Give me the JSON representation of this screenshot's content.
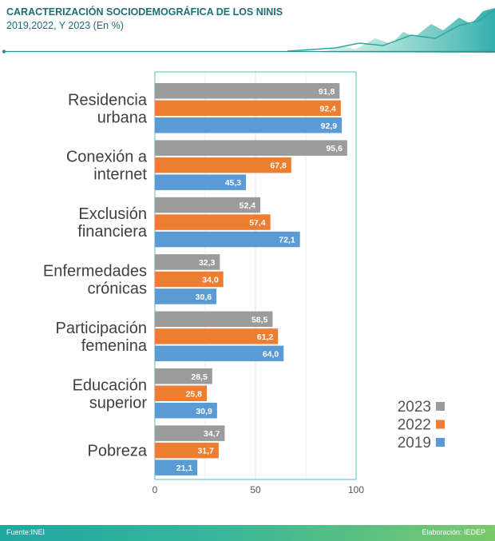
{
  "header": {
    "title_line1": "CARACTERIZACIÓN SOCIODEMOGRÁFICA DE LOS NINIS",
    "title_line2": "2019,2022, Y 2023 (En %)"
  },
  "footer": {
    "source": "Fuente:INEI",
    "credit": "Elaboración: IEDEP"
  },
  "colors": {
    "accent": "#1f6f73",
    "2023": "#9b9b9b",
    "2022": "#ed7d31",
    "2019": "#5b9bd5",
    "axis_frame": "#8ed3d6"
  },
  "chart_data": {
    "type": "bar",
    "orientation": "horizontal",
    "categories": [
      [
        "Residencia",
        "urbana"
      ],
      [
        "Conexión a",
        "internet"
      ],
      [
        "Exclusión",
        "financiera"
      ],
      [
        "Enfermedades",
        "crónicas"
      ],
      [
        "Participación",
        "femenina"
      ],
      [
        "Educación",
        "superior"
      ],
      [
        "Pobreza"
      ]
    ],
    "series": [
      {
        "name": "2023",
        "values": [
          91.8,
          95.6,
          52.4,
          32.3,
          58.5,
          28.5,
          34.7
        ],
        "labels": [
          "91,8",
          "95,6",
          "52,4",
          "32,3",
          "58,5",
          "28,5",
          "34,7"
        ]
      },
      {
        "name": "2022",
        "values": [
          92.4,
          67.8,
          57.4,
          34.0,
          61.2,
          25.8,
          31.7
        ],
        "labels": [
          "92,4",
          "67,8",
          "57,4",
          "34,0",
          "61,2",
          "25,8",
          "31,7"
        ]
      },
      {
        "name": "2019",
        "values": [
          92.9,
          45.3,
          72.1,
          30.6,
          64.0,
          30.9,
          21.1
        ],
        "labels": [
          "92,9",
          "45,3",
          "72,1",
          "30,6",
          "64,0",
          "30,9",
          "21,1"
        ]
      }
    ],
    "xlim": [
      0,
      100
    ],
    "xticks": [
      0,
      50,
      100
    ],
    "grid": true,
    "legend_position": "bottom-right"
  }
}
